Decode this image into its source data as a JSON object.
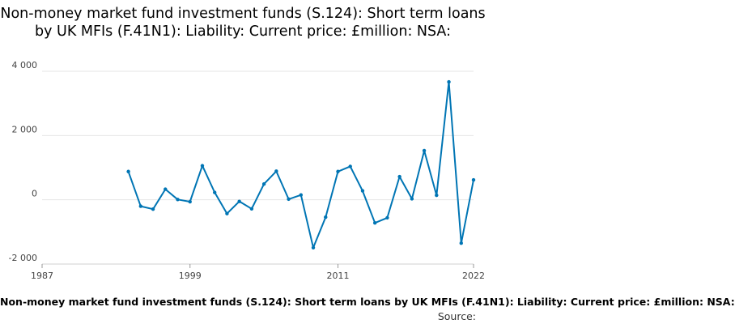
{
  "chart_data": {
    "type": "line",
    "title": "Non-money market fund investment funds (S.124): Short term loans by UK MFIs (F.41N1): Liability: Current price: £million: NSA:",
    "xlabel": "Non-money market fund investment funds (S.124): Short term loans by UK MFIs (F.41N1): Liability: Current price: £million: NSA:",
    "ylabel": "",
    "source_label": "Source:",
    "xlim": [
      1987,
      2022
    ],
    "ylim": [
      -2000,
      4000
    ],
    "x_ticks": [
      1987,
      1999,
      2011,
      2022
    ],
    "y_ticks": [
      -2000,
      0,
      2000,
      4000
    ],
    "y_tick_labels": [
      "-2 000",
      "0",
      "2 000",
      "4 000"
    ],
    "grid": true,
    "line_color": "#0075b4",
    "series": [
      {
        "x": [
          1994,
          1995,
          1996,
          1997,
          1998,
          1999,
          2000,
          2001,
          2002,
          2003,
          2004,
          2005,
          2006,
          2007,
          2008,
          2009,
          2010,
          2011,
          2012,
          2013,
          2014,
          2015,
          2016,
          2017,
          2018,
          2019,
          2020,
          2021,
          2022
        ],
        "values": [
          880,
          -200,
          -290,
          330,
          10,
          -60,
          1060,
          230,
          -430,
          -50,
          -280,
          490,
          890,
          20,
          150,
          -1490,
          -540,
          880,
          1040,
          280,
          -720,
          -560,
          720,
          30,
          1530,
          140,
          3670,
          -1350,
          620
        ]
      }
    ]
  }
}
